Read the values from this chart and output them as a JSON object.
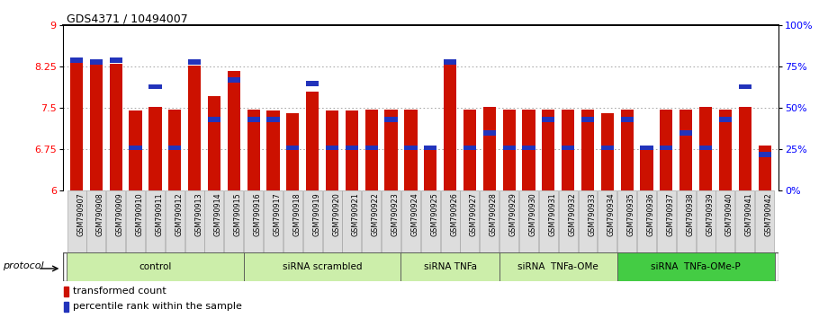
{
  "title": "GDS4371 / 10494007",
  "samples": [
    "GSM790907",
    "GSM790908",
    "GSM790909",
    "GSM790910",
    "GSM790911",
    "GSM790912",
    "GSM790913",
    "GSM790914",
    "GSM790915",
    "GSM790916",
    "GSM790917",
    "GSM790918",
    "GSM790919",
    "GSM790920",
    "GSM790921",
    "GSM790922",
    "GSM790923",
    "GSM790924",
    "GSM790925",
    "GSM790926",
    "GSM790927",
    "GSM790928",
    "GSM790929",
    "GSM790930",
    "GSM790931",
    "GSM790932",
    "GSM790933",
    "GSM790934",
    "GSM790935",
    "GSM790936",
    "GSM790937",
    "GSM790938",
    "GSM790939",
    "GSM790940",
    "GSM790941",
    "GSM790942"
  ],
  "bar_values": [
    8.38,
    8.28,
    8.3,
    7.45,
    7.52,
    7.47,
    8.27,
    7.72,
    8.17,
    7.47,
    7.45,
    7.4,
    7.8,
    7.45,
    7.45,
    7.47,
    7.47,
    7.47,
    6.8,
    8.3,
    7.47,
    7.52,
    7.47,
    7.47,
    7.47,
    7.47,
    7.47,
    7.4,
    7.47,
    6.8,
    7.47,
    7.47,
    7.52,
    7.47,
    7.52,
    6.82
  ],
  "percentile_values": [
    79,
    78,
    79,
    26,
    63,
    26,
    78,
    43,
    67,
    43,
    43,
    26,
    65,
    26,
    26,
    26,
    43,
    26,
    26,
    78,
    26,
    35,
    26,
    26,
    43,
    26,
    43,
    26,
    43,
    26,
    26,
    35,
    26,
    43,
    63,
    22
  ],
  "groups": [
    {
      "label": "control",
      "start": 0,
      "end": 8,
      "color": "#cceeaa"
    },
    {
      "label": "siRNA scrambled",
      "start": 9,
      "end": 16,
      "color": "#cceeaa"
    },
    {
      "label": "siRNA TNFa",
      "start": 17,
      "end": 21,
      "color": "#cceeaa"
    },
    {
      "label": "siRNA  TNFa-OMe",
      "start": 22,
      "end": 27,
      "color": "#cceeaa"
    },
    {
      "label": "siRNA  TNFa-OMe-P",
      "start": 28,
      "end": 35,
      "color": "#44cc44"
    }
  ],
  "ylim_left": [
    6,
    9
  ],
  "ylim_right": [
    0,
    100
  ],
  "yticks_left": [
    6,
    6.75,
    7.5,
    8.25,
    9
  ],
  "yticks_right": [
    0,
    25,
    50,
    75,
    100
  ],
  "bar_color": "#cc1100",
  "percentile_color": "#2233bb",
  "grid_color": "#999999",
  "bar_width": 0.65,
  "protocol_label": "protocol"
}
